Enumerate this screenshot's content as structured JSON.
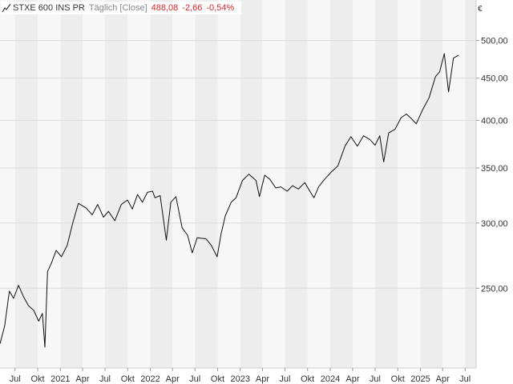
{
  "header": {
    "instrument": "STXE 600 INS PR",
    "frequency": "Täglich [Close]",
    "last": "488,08",
    "change": "-2,66",
    "change_pct": "-0,54%"
  },
  "axis": {
    "currency": "€"
  },
  "colors": {
    "band_light": "#f7f7f7",
    "band_dark": "#ededed",
    "grid": "#dcdcdc",
    "line": "#111111",
    "negative": "#cc2a2a"
  },
  "chart_data": {
    "type": "line",
    "title": "STXE 600 INS PR",
    "y_scale": "log",
    "ylim": [
      200,
      560
    ],
    "xlim": [
      "2020-05-01",
      "2025-08-15"
    ],
    "y_ticks": [
      {
        "value": 250,
        "label": "250,00"
      },
      {
        "value": 300,
        "label": "300,00"
      },
      {
        "value": 350,
        "label": "350,00"
      },
      {
        "value": 400,
        "label": "400,00"
      },
      {
        "value": 450,
        "label": "450,00"
      },
      {
        "value": 500,
        "label": "500,00"
      }
    ],
    "x_ticks": [
      {
        "date": "2020-07-01",
        "label": "Jul"
      },
      {
        "date": "2020-10-01",
        "label": "Okt"
      },
      {
        "date": "2021-01-01",
        "label": "2021"
      },
      {
        "date": "2021-04-01",
        "label": "Apr"
      },
      {
        "date": "2021-07-01",
        "label": "Jul"
      },
      {
        "date": "2021-10-01",
        "label": "Okt"
      },
      {
        "date": "2022-01-01",
        "label": "2022"
      },
      {
        "date": "2022-04-01",
        "label": "Apr"
      },
      {
        "date": "2022-07-01",
        "label": "Jul"
      },
      {
        "date": "2022-10-01",
        "label": "Okt"
      },
      {
        "date": "2023-01-01",
        "label": "2023"
      },
      {
        "date": "2023-04-01",
        "label": "Apr"
      },
      {
        "date": "2023-07-01",
        "label": "Jul"
      },
      {
        "date": "2023-10-01",
        "label": "Okt"
      },
      {
        "date": "2024-01-01",
        "label": "2024"
      },
      {
        "date": "2024-04-01",
        "label": "Apr"
      },
      {
        "date": "2024-07-01",
        "label": "Jul"
      },
      {
        "date": "2024-10-01",
        "label": "Okt"
      },
      {
        "date": "2025-01-01",
        "label": "2025"
      },
      {
        "date": "2025-04-01",
        "label": "Apr"
      },
      {
        "date": "2025-07-01",
        "label": "Jul"
      }
    ],
    "series": [
      {
        "x": [
          "2020-05-01",
          "2020-05-20",
          "2020-06-08",
          "2020-06-25",
          "2020-07-15",
          "2020-08-05",
          "2020-08-25",
          "2020-09-15",
          "2020-10-05",
          "2020-10-20",
          "2020-10-30",
          "2020-11-10",
          "2020-11-25",
          "2020-12-15",
          "2021-01-05",
          "2021-01-29",
          "2021-02-20",
          "2021-03-15",
          "2021-04-15",
          "2021-05-10",
          "2021-06-01",
          "2021-06-25",
          "2021-07-15",
          "2021-08-10",
          "2021-09-05",
          "2021-09-30",
          "2021-10-20",
          "2021-11-10",
          "2021-11-30",
          "2021-12-20",
          "2022-01-10",
          "2022-01-20",
          "2022-02-10",
          "2022-03-07",
          "2022-03-25",
          "2022-04-15",
          "2022-05-10",
          "2022-06-01",
          "2022-06-20",
          "2022-07-10",
          "2022-08-15",
          "2022-09-05",
          "2022-09-29",
          "2022-10-15",
          "2022-11-01",
          "2022-11-25",
          "2022-12-15",
          "2023-01-10",
          "2023-02-05",
          "2023-03-06",
          "2023-03-20",
          "2023-04-10",
          "2023-05-01",
          "2023-05-25",
          "2023-06-15",
          "2023-07-10",
          "2023-08-01",
          "2023-08-25",
          "2023-09-20",
          "2023-10-10",
          "2023-10-27",
          "2023-11-15",
          "2023-12-05",
          "2024-01-05",
          "2024-02-01",
          "2024-03-01",
          "2024-03-25",
          "2024-04-20",
          "2024-05-15",
          "2024-06-10",
          "2024-07-01",
          "2024-07-20",
          "2024-08-05",
          "2024-08-25",
          "2024-09-20",
          "2024-10-15",
          "2024-11-05",
          "2024-11-25",
          "2024-12-15",
          "2025-01-10",
          "2025-02-05",
          "2025-03-03",
          "2025-03-20",
          "2025-04-08",
          "2025-04-25",
          "2025-05-15",
          "2025-06-05"
        ],
        "y": [
          214,
          225,
          248,
          243,
          252,
          244,
          238,
          235,
          228,
          233,
          212,
          262,
          268,
          278,
          273,
          282,
          300,
          317,
          313,
          307,
          316,
          305,
          310,
          302,
          316,
          320,
          312,
          325,
          318,
          327,
          328,
          322,
          324,
          286,
          318,
          323,
          296,
          290,
          276,
          288,
          287,
          282,
          273,
          291,
          306,
          318,
          322,
          338,
          344,
          338,
          323,
          343,
          339,
          331,
          332,
          328,
          333,
          330,
          336,
          328,
          322,
          332,
          338,
          346,
          352,
          372,
          382,
          372,
          383,
          379,
          373,
          383,
          356,
          386,
          390,
          403,
          407,
          402,
          396,
          412,
          426,
          452,
          458,
          482,
          433,
          476,
          480
        ]
      }
    ]
  }
}
